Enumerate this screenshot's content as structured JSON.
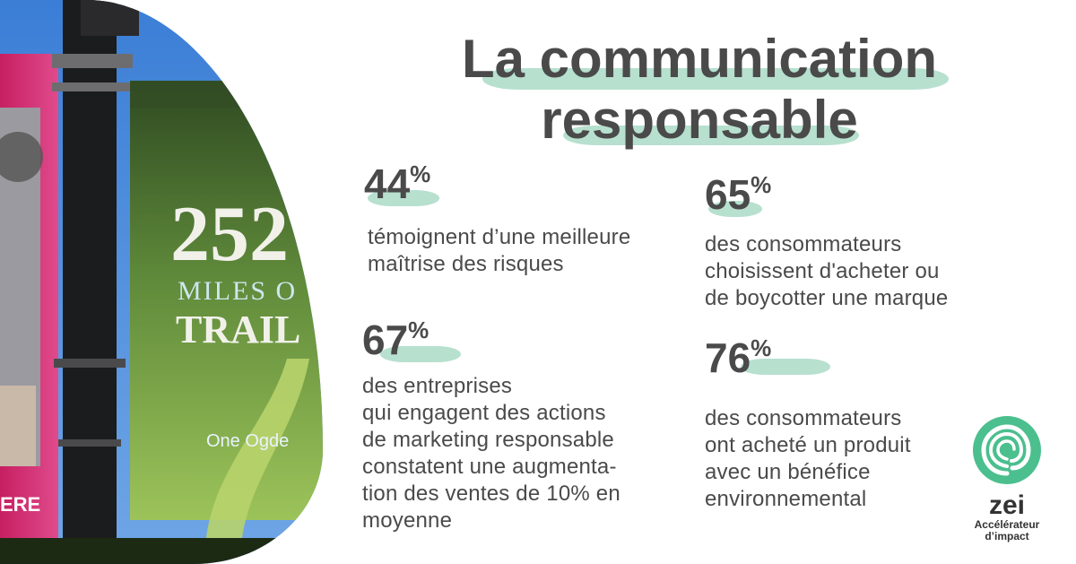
{
  "title": {
    "line1": "La communication",
    "line2": "responsable"
  },
  "photo": {
    "banner_number": "252",
    "banner_line2": "MILES O",
    "banner_line3": "TRAIL",
    "banner_brand": "One Ogde",
    "pink_banner_text": "ERE"
  },
  "stats": [
    {
      "value": "44",
      "unit": "%",
      "text": "témoignent d’une meilleure\nmaîtrise des risques"
    },
    {
      "value": "65",
      "unit": "%",
      "text": "des consommateurs\nchoisissent d'acheter ou\nde boycotter une marque"
    },
    {
      "value": "67",
      "unit": "%",
      "text": "des entreprises\nqui engagent des actions\nde marketing responsable\nconstatent une augmenta-\ntion des ventes de 10% en\nmoyenne"
    },
    {
      "value": "76",
      "unit": "%",
      "text": "des consommateurs\nont acheté un produit\navec un bénéfice\nenvironnemental"
    }
  ],
  "logo": {
    "name": "zei",
    "tagline_1": "Accélérateur",
    "tagline_2": "d’impact",
    "icon": "spiral-leaf-icon"
  },
  "colors": {
    "accent": "#b7e0cf",
    "logo_green": "#4bbf8e",
    "text": "#4a4a4a"
  }
}
